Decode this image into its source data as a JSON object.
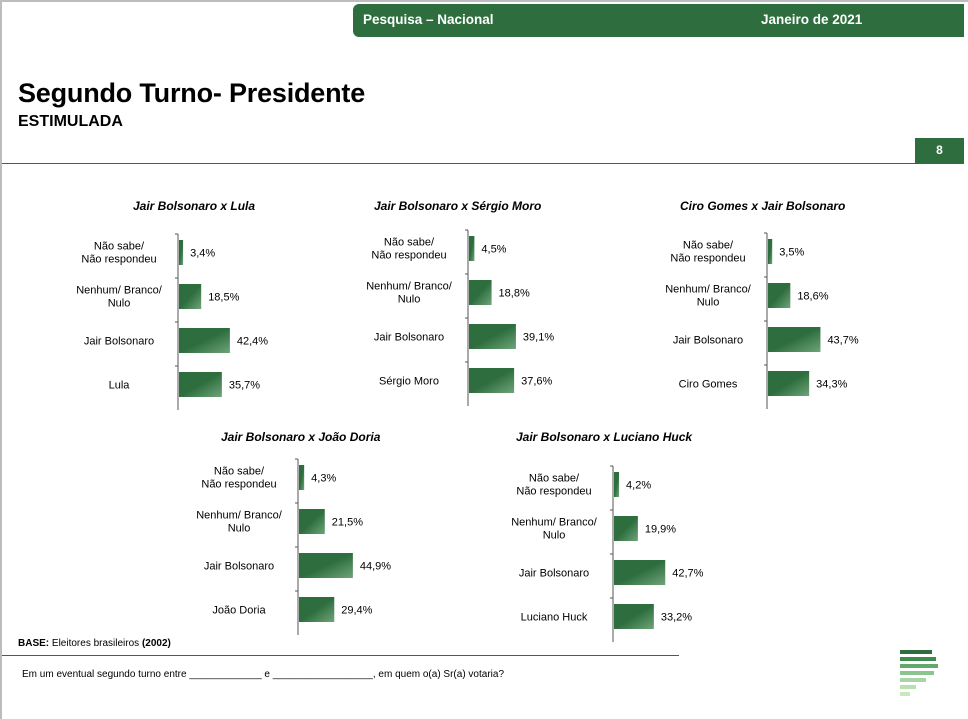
{
  "header": {
    "survey_label": "Pesquisa – Nacional",
    "date_label": "Janeiro de 2021",
    "title": "Segundo Turno- Presidente",
    "subtitle": "ESTIMULADA",
    "page_number": "8"
  },
  "footer": {
    "base_label": "BASE:",
    "base_text": "Eleitores brasileiros",
    "base_count": "(2002)",
    "question": "Em um eventual segundo turno entre  _____________  e  __________________, em quem o(a) Sr(a) votaria?"
  },
  "colors": {
    "accent": "#2e6e3e",
    "bar_light": "#6fa47a"
  },
  "chart_data": [
    {
      "type": "bar",
      "orientation": "horizontal",
      "title": "Jair Bolsonaro x Lula",
      "categories": [
        "Não sabe/ Não respondeu",
        "Nenhum/ Branco/ Nulo",
        "Jair Bolsonaro",
        "Lula"
      ],
      "values": [
        3.4,
        18.5,
        42.4,
        35.7
      ],
      "value_labels": [
        "3,4%",
        "18,5%",
        "42,4%",
        "35,7%"
      ],
      "unit": "%",
      "xlim": [
        0,
        100
      ]
    },
    {
      "type": "bar",
      "orientation": "horizontal",
      "title": "Jair Bolsonaro x Sérgio Moro",
      "categories": [
        "Não sabe/ Não respondeu",
        "Nenhum/ Branco/ Nulo",
        "Jair Bolsonaro",
        "Sérgio Moro"
      ],
      "values": [
        4.5,
        18.8,
        39.1,
        37.6
      ],
      "value_labels": [
        "4,5%",
        "18,8%",
        "39,1%",
        "37,6%"
      ],
      "unit": "%",
      "xlim": [
        0,
        100
      ]
    },
    {
      "type": "bar",
      "orientation": "horizontal",
      "title": "Ciro Gomes x Jair Bolsonaro",
      "categories": [
        "Não sabe/ Não respondeu",
        "Nenhum/ Branco/ Nulo",
        "Jair Bolsonaro",
        "Ciro Gomes"
      ],
      "values": [
        3.5,
        18.6,
        43.7,
        34.3
      ],
      "value_labels": [
        "3,5%",
        "18,6%",
        "43,7%",
        "34,3%"
      ],
      "unit": "%",
      "xlim": [
        0,
        100
      ]
    },
    {
      "type": "bar",
      "orientation": "horizontal",
      "title": "Jair Bolsonaro x João Doria",
      "categories": [
        "Não sabe/ Não respondeu",
        "Nenhum/ Branco/ Nulo",
        "Jair Bolsonaro",
        "João Doria"
      ],
      "values": [
        4.3,
        21.5,
        44.9,
        29.4
      ],
      "value_labels": [
        "4,3%",
        "21,5%",
        "44,9%",
        "29,4%"
      ],
      "unit": "%",
      "xlim": [
        0,
        100
      ]
    },
    {
      "type": "bar",
      "orientation": "horizontal",
      "title": "Jair Bolsonaro x Luciano Huck",
      "categories": [
        "Não sabe/ Não respondeu",
        "Nenhum/ Branco/ Nulo",
        "Jair Bolsonaro",
        "Luciano Huck"
      ],
      "values": [
        4.2,
        19.9,
        42.7,
        33.2
      ],
      "value_labels": [
        "4,2%",
        "19,9%",
        "42,7%",
        "33,2%"
      ],
      "unit": "%",
      "xlim": [
        0,
        100
      ]
    }
  ]
}
